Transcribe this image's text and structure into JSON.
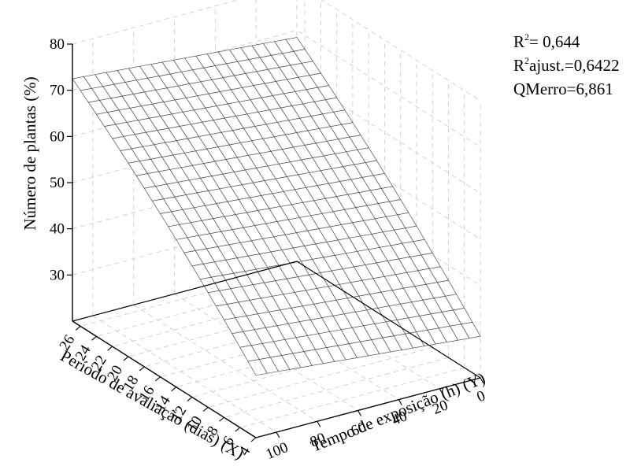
{
  "chart_data": {
    "type": "surface3d",
    "zlabel": "Número de plantas (%)",
    "xlabel": "Período de avaliação (dias) (X)",
    "ylabel": "Tempo de exposição (h) (Y)",
    "zlim": [
      20,
      80
    ],
    "xlim": [
      4,
      27
    ],
    "ylim": [
      0,
      110
    ],
    "z_ticks": [
      "30",
      "40",
      "50",
      "60",
      "70",
      "80"
    ],
    "x_ticks": [
      "26",
      "24",
      "22",
      "20",
      "18",
      "16",
      "14",
      "12",
      "10",
      "8",
      "6",
      "4"
    ],
    "y_ticks": [
      "100",
      "80",
      "60",
      "40",
      "20",
      "0"
    ],
    "surface_corners": [
      {
        "x": 27,
        "y": 0,
        "z": 68.5
      },
      {
        "x": 27,
        "y": 110,
        "z": 72.5
      },
      {
        "x": 4,
        "y": 0,
        "z": 29.0
      },
      {
        "x": 4,
        "y": 110,
        "z": 33.5
      }
    ],
    "grid": true,
    "stats": {
      "r2": {
        "base": "R",
        "sup": "2",
        "text": "= 0,644"
      },
      "r2adj": {
        "base": "R",
        "sup": "2",
        "text": "ajust.=0,6422"
      },
      "qm": "QMerro=6,861"
    }
  }
}
